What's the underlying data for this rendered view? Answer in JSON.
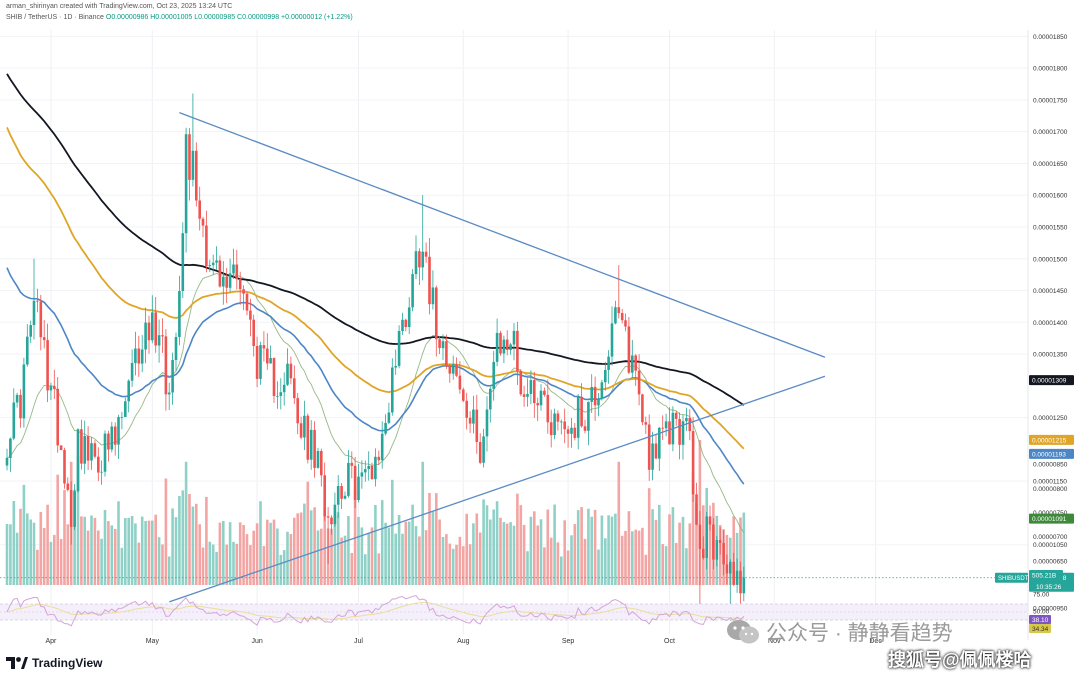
{
  "header": {
    "author_line": "arman_shirinyan created with TradingView.com, Oct 23, 2025 13:24 UTC",
    "symbol_line": "SHIB / TetherUS · 1D · Binance",
    "ohlc": "O0.00000986 H0.00001005 L0.00000985 C0.00000998 +0.00000012 (+1.22%)"
  },
  "footer": {
    "logo_text": "TradingView"
  },
  "watermark": {
    "line1": "公众号 · 静静看趋势",
    "line2": "搜狐号@佩佩楼哈"
  },
  "colors": {
    "up": "#26a69a",
    "down": "#ef5350",
    "vol_up": "#8fd1c7",
    "vol_down": "#f2a5a3",
    "sma200": "#131722",
    "sma100": "#e0a526",
    "ema50": "#4d86c6",
    "ema20": "#7ea66a",
    "trendline": "#5b8bc4",
    "rsi": "#d6a4d8",
    "rsi_ma": "#eadf9a"
  },
  "chart_data": {
    "type": "candlestick",
    "symbol": "SHIB / TetherUS",
    "interval": "1D",
    "exchange": "Binance",
    "x_range": [
      "2025-03-19",
      "2025-12-18"
    ],
    "y_range": [
      9e-06,
      1.86e-05
    ],
    "month_labels": [
      {
        "label": "Apr",
        "date": "2025-04-01"
      },
      {
        "label": "May",
        "date": "2025-05-01"
      },
      {
        "label": "Jun",
        "date": "2025-06-01"
      },
      {
        "label": "Jul",
        "date": "2025-07-01"
      },
      {
        "label": "Aug",
        "date": "2025-08-01"
      },
      {
        "label": "Sep",
        "date": "2025-09-01"
      },
      {
        "label": "Oct",
        "date": "2025-10-01"
      },
      {
        "label": "Nov",
        "date": "2025-11-01"
      },
      {
        "label": "Dec",
        "date": "2025-12-01"
      }
    ],
    "price_ticks": [
      "0.00001850",
      "0.00001800",
      "0.00001750",
      "0.00001700",
      "0.00001650",
      "0.00001600",
      "0.00001550",
      "0.00001500",
      "0.00001450",
      "0.00001400",
      "0.00001350",
      "0.00001250",
      "0.00001150",
      "0.00001050",
      "0.00000950",
      "0.00000900",
      "0.00000850",
      "0.00000800",
      "0.00000750",
      "0.00000700",
      "0.00000650",
      "0.00000600"
    ],
    "price_tags": [
      {
        "name": "SMA 200",
        "value": 1.309e-05,
        "label": "0.00001309",
        "color": "#131722"
      },
      {
        "name": "SMA 100",
        "value": 1.215e-05,
        "label": "0.00001215",
        "color": "#e0a526"
      },
      {
        "name": "EMA 50",
        "value": 1.193e-05,
        "label": "0.00001193",
        "color": "#4d86c6"
      },
      {
        "name": "EMA 20",
        "value": 1.091e-05,
        "label": "0.00001091",
        "color": "#3d8a3a"
      }
    ],
    "last_price": {
      "symbol_label": "SHIBUSDT",
      "value": 9.98e-06,
      "label": "0.00000998",
      "countdown": "10:35:26"
    },
    "volume_last_label": "505.21B",
    "rsi": {
      "ticks": [
        "75.00",
        "50.00"
      ],
      "value_labels": [
        "38.10",
        "34.34"
      ],
      "upper": 70,
      "lower": 30
    },
    "trendlines": [
      {
        "name": "upper",
        "from": {
          "date": "2025-05-09",
          "price": 1.73e-05
        },
        "to": {
          "date": "2025-11-16",
          "price": 1.345e-05
        }
      },
      {
        "name": "lower",
        "from": {
          "date": "2025-05-06",
          "price": 9.6e-06
        },
        "to": {
          "date": "2025-11-16",
          "price": 1.315e-05
        }
      }
    ],
    "price_anchors": [
      [
        "2025-03-19",
        1.22e-05
      ],
      [
        "2025-03-23",
        1.28e-05
      ],
      [
        "2025-03-27",
        1.43e-05
      ],
      [
        "2025-03-31",
        1.32e-05
      ],
      [
        "2025-04-03",
        1.24e-05
      ],
      [
        "2025-04-07",
        1.1e-05
      ],
      [
        "2025-04-09",
        1.22e-05
      ],
      [
        "2025-04-13",
        1.18e-05
      ],
      [
        "2025-04-20",
        1.21e-05
      ],
      [
        "2025-04-25",
        1.31e-05
      ],
      [
        "2025-04-28",
        1.38e-05
      ],
      [
        "2025-05-03",
        1.4e-05
      ],
      [
        "2025-05-06",
        1.28e-05
      ],
      [
        "2025-05-09",
        1.48e-05
      ],
      [
        "2025-05-11",
        1.68e-05
      ],
      [
        "2025-05-13",
        1.64e-05
      ],
      [
        "2025-05-18",
        1.5e-05
      ],
      [
        "2025-05-22",
        1.45e-05
      ],
      [
        "2025-05-26",
        1.5e-05
      ],
      [
        "2025-05-31",
        1.36e-05
      ],
      [
        "2025-06-04",
        1.31e-05
      ],
      [
        "2025-06-10",
        1.32e-05
      ],
      [
        "2025-06-13",
        1.24e-05
      ],
      [
        "2025-06-18",
        1.19e-05
      ],
      [
        "2025-06-22",
        1.1e-05
      ],
      [
        "2025-06-26",
        1.15e-05
      ],
      [
        "2025-07-02",
        1.15e-05
      ],
      [
        "2025-07-08",
        1.21e-05
      ],
      [
        "2025-07-11",
        1.32e-05
      ],
      [
        "2025-07-15",
        1.42e-05
      ],
      [
        "2025-07-20",
        1.55e-05
      ],
      [
        "2025-07-23",
        1.42e-05
      ],
      [
        "2025-07-28",
        1.35e-05
      ],
      [
        "2025-08-02",
        1.25e-05
      ],
      [
        "2025-08-06",
        1.21e-05
      ],
      [
        "2025-08-11",
        1.35e-05
      ],
      [
        "2025-08-15",
        1.38e-05
      ],
      [
        "2025-08-19",
        1.29e-05
      ],
      [
        "2025-08-23",
        1.3e-05
      ],
      [
        "2025-08-27",
        1.25e-05
      ],
      [
        "2025-09-02",
        1.24e-05
      ],
      [
        "2025-09-06",
        1.26e-05
      ],
      [
        "2025-09-10",
        1.3e-05
      ],
      [
        "2025-09-14",
        1.38e-05
      ],
      [
        "2025-09-16",
        1.4e-05
      ],
      [
        "2025-09-21",
        1.32e-05
      ],
      [
        "2025-09-25",
        1.2e-05
      ],
      [
        "2025-09-29",
        1.21e-05
      ],
      [
        "2025-10-03",
        1.25e-05
      ],
      [
        "2025-10-07",
        1.21e-05
      ],
      [
        "2025-10-10",
        1.02e-05
      ],
      [
        "2025-10-12",
        1.08e-05
      ],
      [
        "2025-10-15",
        1.04e-05
      ],
      [
        "2025-10-18",
        1.01e-05
      ],
      [
        "2025-10-23",
        9.98e-06
      ]
    ]
  }
}
